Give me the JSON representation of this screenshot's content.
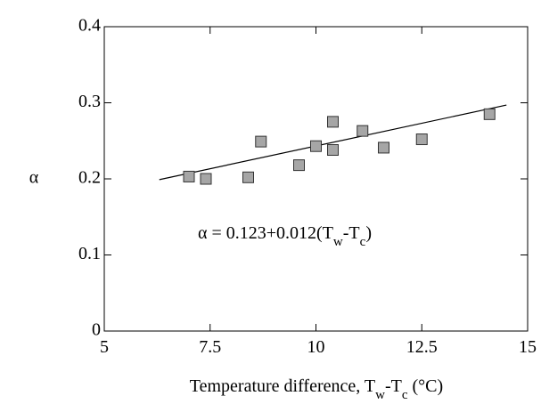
{
  "chart_data": {
    "type": "scatter",
    "x_label": [
      "Temperature difference, T",
      "w",
      "-T",
      "c",
      " (°C)"
    ],
    "y_label": "α",
    "annotation": [
      "α = 0.123+0.012(T",
      "w",
      "-T",
      "c",
      ")"
    ],
    "x": [
      7.0,
      7.4,
      8.4,
      8.7,
      9.6,
      10.0,
      10.4,
      10.4,
      11.1,
      11.6,
      12.5,
      14.1
    ],
    "values": [
      0.203,
      0.2,
      0.202,
      0.249,
      0.218,
      0.243,
      0.238,
      0.275,
      0.263,
      0.241,
      0.252,
      0.285
    ],
    "color": "#a6a6a6",
    "fit": {
      "x": [
        6.3,
        14.5
      ],
      "values": [
        0.199,
        0.297
      ]
    },
    "xlim": [
      5,
      15
    ],
    "ylim": [
      0,
      0.4
    ],
    "xticks": [
      5,
      7.5,
      10,
      12.5,
      15
    ],
    "yticks": [
      0,
      0.1,
      0.2,
      0.3,
      0.4
    ]
  }
}
